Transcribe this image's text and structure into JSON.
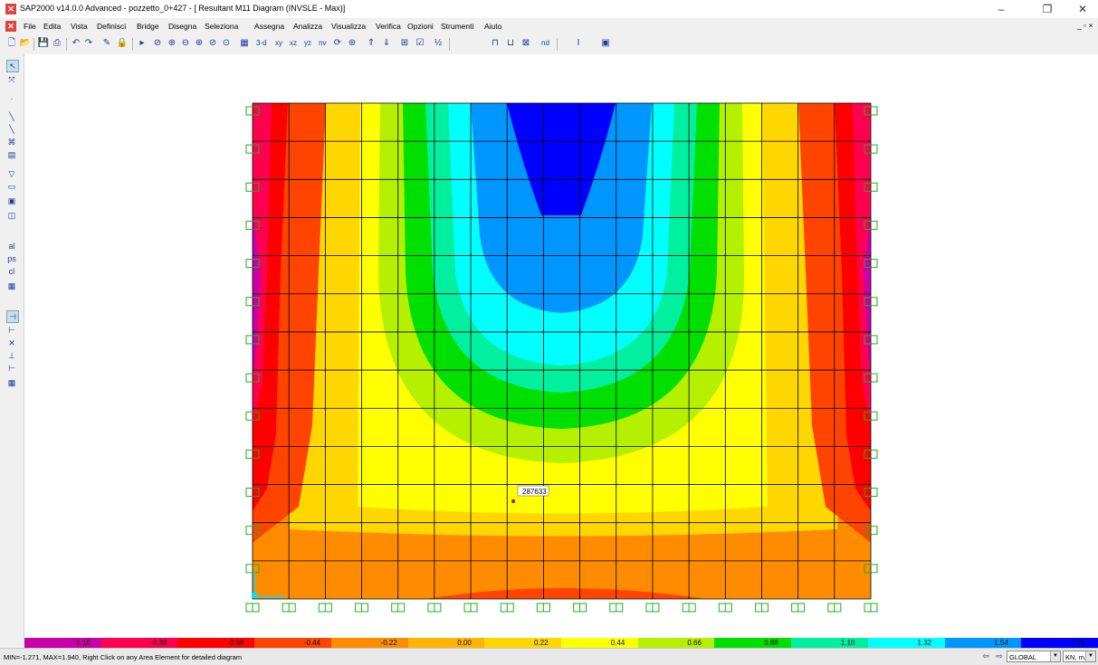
{
  "window": {
    "title": "SAP2000 v14.0.0 Advanced  - pozzetto_0+427 - [ Resultant M11 Diagram  (INVSLE - Max)]",
    "controls": [
      "–",
      "❐",
      "✕"
    ],
    "child_controls": "_ ▫ ×"
  },
  "menu": [
    "File",
    "Edita",
    "Vista",
    "Definisci",
    "Bridge",
    "Disegna",
    "Seleziona",
    "Assegna",
    "Analizza",
    "Visualizza",
    "Verifica",
    "Opzioni",
    "Strumenti",
    "Aiuto"
  ],
  "toolbar": {
    "icons": [
      "new-file-icon",
      "open-file-icon",
      "save-icon",
      "print-icon",
      "undo-icon",
      "redo-icon",
      "pencil-icon",
      "lock-icon",
      "run-icon",
      "rubber-zoom-icon",
      "zoom-in-icon",
      "zoom-out-icon",
      "zoom-window-icon",
      "zoom-prev-icon",
      "zoom-full-icon",
      "pan-icon"
    ],
    "view_labels": [
      "3-d",
      "xy",
      "xz",
      "yz",
      "nv"
    ],
    "text_labels": [
      "nd"
    ]
  },
  "sidebar": {
    "icons": [
      "pointer-icon",
      "reshape-icon",
      "dot-icon",
      "draw-frame-icon",
      "draw-line-icon",
      "quick-draw-icon",
      "draw-grid-icon",
      "draw-poly-area-icon",
      "draw-rect-area-icon",
      "quick-area-icon",
      "draw-solid-icon",
      "select-all-icon",
      "prev-select-icon",
      "clear-select-icon",
      "snap-grid-icon",
      "snap-joint-icon",
      "snap-mid-icon",
      "snap-intersect-icon",
      "snap-perp-icon",
      "snap-line-icon",
      "snap-fine-icon"
    ],
    "labels": [
      "al",
      "ps",
      "cl"
    ]
  },
  "diagram": {
    "tooltip_value": "287633",
    "mesh_columns": 17,
    "mesh_rows": 13
  },
  "legend": {
    "labels": [
      "-1.10",
      "-0.88",
      "-0.66",
      "-0.44",
      "-0.22",
      "0.00",
      "0.22",
      "0.44",
      "0.66",
      "0.88",
      "1.10",
      "1.32",
      "1.54",
      "1.76"
    ],
    "colors": [
      "#c800a8",
      "#ff0050",
      "#ff0000",
      "#ff4400",
      "#ff8c00",
      "#ffb400",
      "#ffd700",
      "#ffff00",
      "#b4f000",
      "#00e000",
      "#00f0a0",
      "#00ffff",
      "#0096ff",
      "#0000ff"
    ]
  },
  "status": {
    "text": "MIN=-1.271, MAX=1.940, Right Click on any Area Element for detailed diagram",
    "coord_system": "GLOBAL",
    "units": "KN, m, C"
  }
}
